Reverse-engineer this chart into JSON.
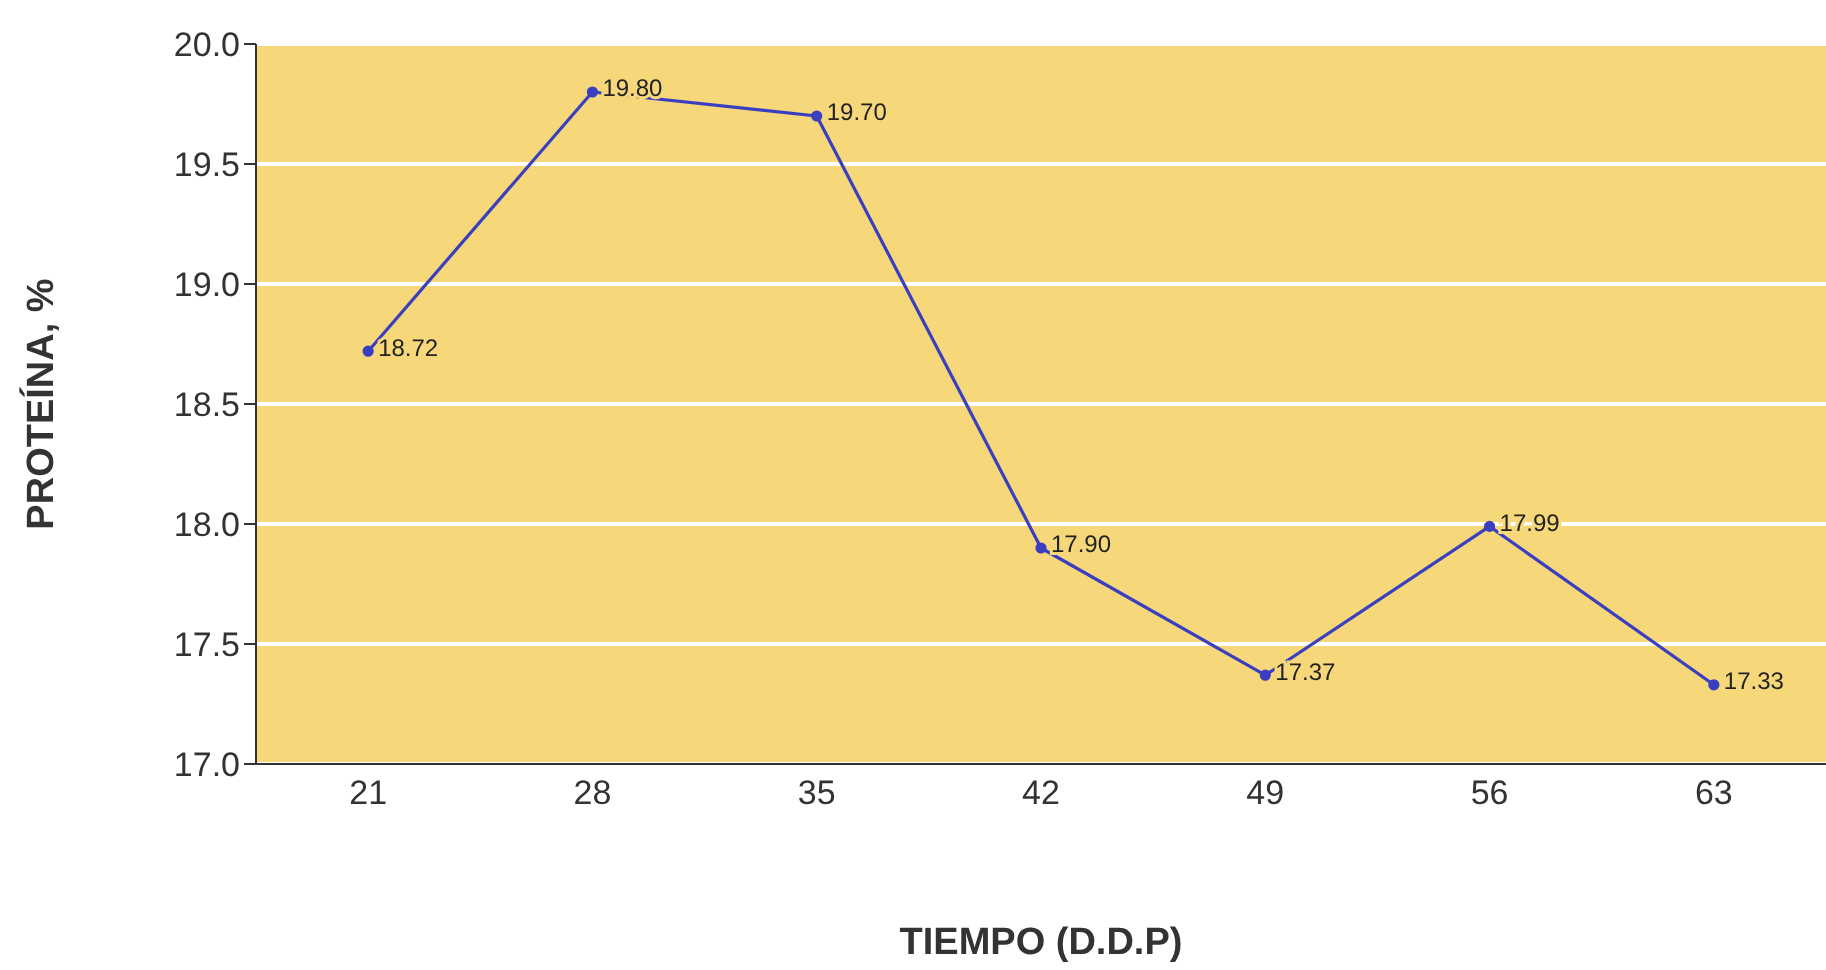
{
  "chart_data": {
    "type": "line",
    "xlabel": "TIEMPO (D.D.P)",
    "ylabel": "PROTEÍNA, %",
    "categories": [
      "21",
      "28",
      "35",
      "42",
      "49",
      "56",
      "63"
    ],
    "series": [
      {
        "color": "#3a3fc0",
        "values": [
          18.72,
          19.8,
          19.7,
          17.9,
          17.37,
          17.99,
          17.33
        ],
        "value_labels": [
          "18.72",
          "19.80",
          "19.70",
          "17.90",
          "17.37",
          "17.99",
          "17.33"
        ]
      }
    ],
    "ylim": [
      17.0,
      20.0
    ],
    "yticks": [
      {
        "value": 17.0,
        "label": "17.0"
      },
      {
        "value": 17.5,
        "label": "17.5"
      },
      {
        "value": 18.0,
        "label": "18.0"
      },
      {
        "value": 18.5,
        "label": "18.5"
      },
      {
        "value": 19.0,
        "label": "19.0"
      },
      {
        "value": 19.5,
        "label": "19.5"
      },
      {
        "value": 20.0,
        "label": "20.0"
      }
    ],
    "grid": "y",
    "marker": "circle"
  }
}
